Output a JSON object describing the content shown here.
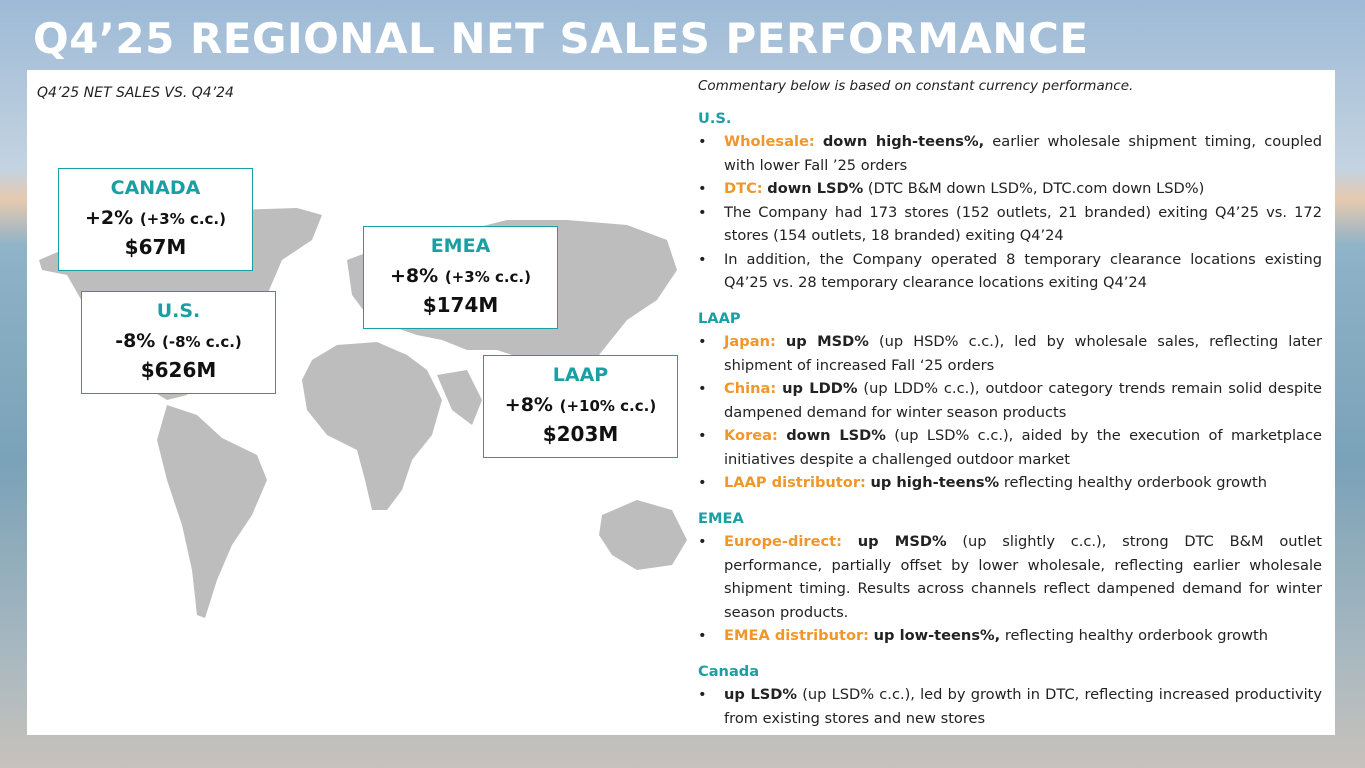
{
  "header": {
    "title": "Q4’25 REGIONAL NET SALES PERFORMANCE"
  },
  "map_panel": {
    "subtitle": "Q4’25 NET SALES VS. Q4’24",
    "regions": [
      {
        "name": "CANADA",
        "change": "+2%",
        "cc": "(+3% c.c.)",
        "sales": "$67M"
      },
      {
        "name": "U.S.",
        "change": "-8%",
        "cc": "(-8% c.c.)",
        "sales": "$626M"
      },
      {
        "name": "EMEA",
        "change": "+8%",
        "cc": "(+3% c.c.)",
        "sales": "$174M"
      },
      {
        "name": "LAAP",
        "change": "+8%",
        "cc": "(+10% c.c.)",
        "sales": "$203M"
      }
    ]
  },
  "commentary": {
    "note": "Commentary below is based on constant currency performance.",
    "sections": [
      {
        "heading": "U.S.",
        "bullets": [
          [
            {
              "style": "label",
              "text": "Wholesale:"
            },
            {
              "style": "bold",
              "text": "down high-teens%,"
            },
            {
              "style": "plain",
              "text": "earlier wholesale shipment timing, coupled with lower Fall ’25 orders"
            }
          ],
          [
            {
              "style": "label",
              "text": "DTC:"
            },
            {
              "style": "bold",
              "text": "down LSD%"
            },
            {
              "style": "plain",
              "text": "(DTC B&M down LSD%, DTC.com down LSD%)"
            }
          ],
          [
            {
              "style": "plain",
              "text": "The Company had 173 stores (152 outlets, 21 branded) exiting Q4’25 vs. 172 stores (154 outlets, 18 branded) exiting Q4’24"
            }
          ],
          [
            {
              "style": "plain",
              "text": "In addition, the Company operated 8 temporary clearance locations existing Q4’25 vs. 28 temporary clearance locations exiting Q4’24"
            }
          ]
        ]
      },
      {
        "heading": "LAAP",
        "bullets": [
          [
            {
              "style": "label",
              "text": "Japan:"
            },
            {
              "style": "bold",
              "text": "up MSD%"
            },
            {
              "style": "plain",
              "text": "(up HSD% c.c.), led by wholesale sales, reflecting later shipment of increased Fall ‘25 orders"
            }
          ],
          [
            {
              "style": "label",
              "text": "China:"
            },
            {
              "style": "bold",
              "text": "up LDD%"
            },
            {
              "style": "plain",
              "text": "(up LDD% c.c.), outdoor category trends remain solid despite dampened demand for winter season products"
            }
          ],
          [
            {
              "style": "label",
              "text": "Korea:"
            },
            {
              "style": "bold",
              "text": "down LSD%"
            },
            {
              "style": "plain",
              "text": "(up LSD% c.c.), aided by the execution of marketplace initiatives despite a challenged outdoor market"
            }
          ],
          [
            {
              "style": "label",
              "text": "LAAP distributor:"
            },
            {
              "style": "bold",
              "text": "up high-teens%"
            },
            {
              "style": "plain",
              "text": "reflecting healthy orderbook growth"
            }
          ]
        ]
      },
      {
        "heading": "EMEA",
        "bullets": [
          [
            {
              "style": "label",
              "text": "Europe-direct:"
            },
            {
              "style": "bold",
              "text": "up MSD%"
            },
            {
              "style": "plain",
              "text": "(up slightly c.c.), strong DTC B&M outlet performance, partially offset by lower wholesale, reflecting earlier wholesale shipment timing. Results across channels reflect dampened demand for winter season products."
            }
          ],
          [
            {
              "style": "label",
              "text": "EMEA distributor:"
            },
            {
              "style": "bold",
              "text": "up low-teens%,"
            },
            {
              "style": "plain",
              "text": "reflecting healthy orderbook growth"
            }
          ]
        ]
      },
      {
        "heading": "Canada",
        "bullets": [
          [
            {
              "style": "bold",
              "text": "up LSD%"
            },
            {
              "style": "plain",
              "text": "(up LSD% c.c.), led by growth in DTC, reflecting increased productivity from existing stores and new stores"
            }
          ]
        ]
      }
    ]
  }
}
